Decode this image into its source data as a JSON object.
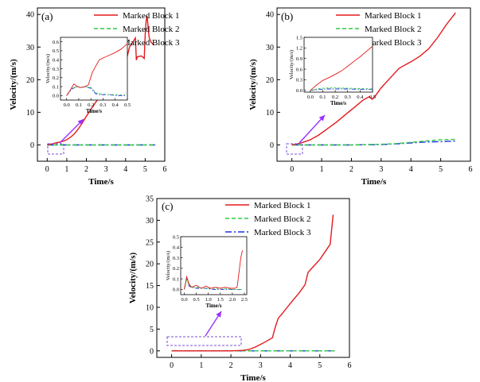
{
  "chart_data": [
    {
      "id": "a",
      "panel_label": "(a)",
      "type": "line",
      "xlabel": "Time/s",
      "ylabel": "Velocity/(m/s)",
      "xlim": [
        -0.5,
        6
      ],
      "ylim": [
        -5,
        42
      ],
      "xticks": [
        0,
        1,
        2,
        3,
        4,
        5,
        6
      ],
      "yticks": [
        0,
        10,
        20,
        30,
        40
      ],
      "legend": [
        "Marked Block 1",
        "Marked Block 2",
        "Marked Block 3"
      ],
      "series": [
        {
          "name": "Marked Block 1",
          "color": "#e41a1c",
          "dash": "solid",
          "x": [
            0,
            0.3,
            0.5,
            0.8,
            1.0,
            1.2,
            1.4,
            1.6,
            1.8,
            2.0,
            2.3,
            2.6,
            2.9,
            3.2,
            3.4,
            3.6,
            3.8,
            3.9,
            4.0,
            4.1,
            4.2,
            4.4,
            4.5,
            4.55,
            4.6,
            4.8,
            4.95,
            5.0,
            5.05,
            5.1,
            5.2,
            5.3,
            5.45
          ],
          "y": [
            0,
            0.4,
            0.7,
            1.1,
            1.6,
            2.4,
            3.5,
            5.0,
            6.8,
            8.8,
            11.5,
            14.2,
            16.8,
            19.5,
            18.6,
            21.2,
            23.5,
            23.8,
            25.0,
            27.5,
            30.0,
            31.8,
            32.8,
            26.0,
            27.0,
            27.3,
            26.5,
            33.8,
            38.0,
            39.5,
            33.0,
            31.5,
            30.6
          ]
        },
        {
          "name": "Marked Block 2",
          "color": "#2ecc40",
          "dash": "dash",
          "x": [
            0,
            1,
            2,
            3,
            4,
            5,
            5.5
          ],
          "y": [
            0,
            0,
            0,
            0,
            0,
            0,
            0
          ]
        },
        {
          "name": "Marked Block 3",
          "color": "#1f2fe8",
          "dash": "dashdot",
          "x": [
            0,
            1,
            2,
            3,
            4,
            5,
            5.5
          ],
          "y": [
            0,
            0,
            0,
            0,
            0,
            0,
            0
          ]
        }
      ],
      "inset": {
        "xlabel": "Time/s",
        "ylabel": "Velocity/(m/s)",
        "xlim": [
          -0.05,
          0.5
        ],
        "ylim": [
          -0.05,
          0.65
        ],
        "xticks": [
          0.0,
          0.1,
          0.2,
          0.3,
          0.4,
          0.5
        ],
        "xtick_labels": [
          "0.0",
          "0.1",
          "0.2",
          "0.3",
          "0.4",
          "0.5"
        ],
        "yticks": [
          0.0,
          0.1,
          0.2,
          0.3,
          0.4,
          0.5,
          0.6
        ],
        "ytick_labels": [
          "0.0",
          "0.1",
          "0.2",
          "0.3",
          "0.4",
          "0.5",
          "0.6"
        ],
        "series": [
          {
            "color": "#e41a1c",
            "dash": "solid",
            "x": [
              0,
              0.03,
              0.06,
              0.09,
              0.12,
              0.15,
              0.18,
              0.21,
              0.24,
              0.27,
              0.3,
              0.35,
              0.4,
              0.45,
              0.5
            ],
            "y": [
              0,
              0.06,
              0.13,
              0.1,
              0.09,
              0.1,
              0.12,
              0.25,
              0.33,
              0.4,
              0.42,
              0.45,
              0.48,
              0.52,
              0.58
            ]
          },
          {
            "color": "#2ecc40",
            "dash": "dash",
            "x": [
              0,
              0.04,
              0.08,
              0.12,
              0.16,
              0.2,
              0.24,
              0.28,
              0.35,
              0.42,
              0.48
            ],
            "y": [
              0,
              0.08,
              0.1,
              0.09,
              0.1,
              0.09,
              0.03,
              0.02,
              0.01,
              0.01,
              0.01
            ]
          },
          {
            "color": "#1f2fe8",
            "dash": "dashdot",
            "x": [
              0,
              0.04,
              0.08,
              0.12,
              0.16,
              0.2,
              0.24,
              0.28,
              0.35,
              0.42,
              0.48
            ],
            "y": [
              0,
              0.07,
              0.1,
              0.09,
              0.1,
              0.08,
              0.02,
              0.01,
              0.01,
              0.0,
              0.0
            ]
          }
        ]
      }
    },
    {
      "id": "b",
      "panel_label": "(b)",
      "type": "line",
      "xlabel": "Time/s",
      "ylabel": "Velocity/(m/s)",
      "xlim": [
        -0.5,
        6
      ],
      "ylim": [
        -5,
        42
      ],
      "xticks": [
        0,
        1,
        2,
        3,
        4,
        5,
        6
      ],
      "yticks": [
        0,
        10,
        20,
        30,
        40
      ],
      "legend": [
        "Marked Block 1",
        "Marked Block 2",
        "Marked Block 3"
      ],
      "series": [
        {
          "name": "Marked Block 1",
          "color": "#e41a1c",
          "dash": "solid",
          "x": [
            0,
            0.3,
            0.6,
            0.9,
            1.2,
            1.5,
            1.8,
            2.1,
            2.4,
            2.6,
            2.7,
            2.8,
            3.0,
            3.3,
            3.6,
            4.0,
            4.3,
            4.6,
            4.9,
            5.2,
            5.5
          ],
          "y": [
            0,
            0.6,
            1.5,
            3.0,
            5.0,
            7.0,
            9.3,
            11.5,
            13.8,
            14.8,
            14.0,
            15.0,
            17.5,
            20.5,
            23.5,
            25.5,
            27.2,
            29.5,
            33.0,
            37.0,
            40.5
          ]
        },
        {
          "name": "Marked Block 2",
          "color": "#2ecc40",
          "dash": "dash",
          "x": [
            0,
            1,
            2,
            3,
            3.5,
            4,
            4.5,
            5,
            5.5
          ],
          "y": [
            0,
            0,
            0,
            0.2,
            0.4,
            0.8,
            1.2,
            1.6,
            1.7
          ]
        },
        {
          "name": "Marked Block 3",
          "color": "#1f2fe8",
          "dash": "dashdot",
          "x": [
            0,
            1,
            2,
            3,
            3.5,
            4,
            4.5,
            5,
            5.5
          ],
          "y": [
            0,
            0,
            0,
            0.1,
            0.3,
            0.6,
            0.9,
            1.0,
            1.2
          ]
        }
      ],
      "inset": {
        "xlabel": "Time/s",
        "ylabel": "Velocity/(m/s)",
        "xlim": [
          -0.05,
          0.5
        ],
        "ylim": [
          -0.05,
          1.5
        ],
        "xticks": [
          0.0,
          0.1,
          0.2,
          0.3,
          0.4,
          0.5
        ],
        "xtick_labels": [
          "0.0",
          "0.1",
          "0.2",
          "0.3",
          "0.4",
          "0.5"
        ],
        "yticks": [
          0.0,
          0.3,
          0.6,
          0.9,
          1.2,
          1.5
        ],
        "ytick_labels": [
          "0.0",
          "0.3",
          "0.6",
          "0.9",
          "1.2",
          "1.5"
        ],
        "series": [
          {
            "color": "#e41a1c",
            "dash": "solid",
            "x": [
              0,
              0.05,
              0.1,
              0.15,
              0.2,
              0.25,
              0.3,
              0.35,
              0.4,
              0.45,
              0.5
            ],
            "y": [
              0,
              0.15,
              0.28,
              0.36,
              0.45,
              0.55,
              0.68,
              0.82,
              0.95,
              1.1,
              1.25
            ]
          },
          {
            "color": "#2ecc40",
            "dash": "dash",
            "x": [
              0,
              0.05,
              0.1,
              0.15,
              0.2,
              0.3,
              0.4,
              0.5
            ],
            "y": [
              0,
              0.04,
              0.06,
              0.07,
              0.07,
              0.06,
              0.05,
              0.04
            ]
          },
          {
            "color": "#1f2fe8",
            "dash": "dashdot",
            "x": [
              0,
              0.05,
              0.1,
              0.15,
              0.2,
              0.3,
              0.4,
              0.5
            ],
            "y": [
              0,
              0.02,
              0.03,
              0.04,
              0.04,
              0.04,
              0.03,
              0.03
            ]
          }
        ]
      }
    },
    {
      "id": "c",
      "panel_label": "(c)",
      "type": "line",
      "xlabel": "Time/s",
      "ylabel": "Velocity/(m/s)",
      "xlim": [
        -0.5,
        6
      ],
      "ylim": [
        -1.5,
        35
      ],
      "xticks": [
        0,
        1,
        2,
        3,
        4,
        5,
        6
      ],
      "yticks": [
        0,
        5,
        10,
        15,
        20,
        25,
        30,
        35
      ],
      "legend": [
        "Marked Block 1",
        "Marked Block 2",
        "Marked Block 3"
      ],
      "series": [
        {
          "name": "Marked Block 1",
          "color": "#e41a1c",
          "dash": "solid",
          "x": [
            0,
            0.5,
            1.0,
            1.5,
            2.0,
            2.4,
            2.6,
            2.8,
            3.0,
            3.2,
            3.4,
            3.5,
            3.6,
            3.7,
            3.9,
            4.1,
            4.3,
            4.5,
            4.6,
            4.8,
            5.0,
            5.2,
            5.35,
            5.45
          ],
          "y": [
            0,
            0,
            0,
            0,
            0,
            0.1,
            0.3,
            0.8,
            1.5,
            2.2,
            3.0,
            5.5,
            7.5,
            8.3,
            10.0,
            11.7,
            13.3,
            15.2,
            18.0,
            19.5,
            21.0,
            23.0,
            24.5,
            31.3
          ]
        },
        {
          "name": "Marked Block 2",
          "color": "#2ecc40",
          "dash": "dash",
          "x": [
            0,
            1,
            2,
            3,
            4,
            5,
            5.5
          ],
          "y": [
            0,
            0,
            0,
            0,
            0,
            0,
            0
          ]
        },
        {
          "name": "Marked Block 3",
          "color": "#1f2fe8",
          "dash": "dashdot",
          "x": [
            0,
            1,
            2,
            3,
            4,
            5,
            5.5
          ],
          "y": [
            0,
            0,
            0,
            0,
            0,
            0,
            0
          ]
        }
      ],
      "inset": {
        "xlabel": "Time/s",
        "ylabel": "Velocity/(m/s)",
        "xlim": [
          -0.15,
          2.6
        ],
        "ylim": [
          -0.05,
          0.5
        ],
        "xticks": [
          0.0,
          0.5,
          1.0,
          1.5,
          2.0,
          2.5
        ],
        "xtick_labels": [
          "0.0",
          "0.5",
          "1.0",
          "1.5",
          "2.0",
          "2.5"
        ],
        "yticks": [
          0.0,
          0.1,
          0.2,
          0.3,
          0.4,
          0.5
        ],
        "ytick_labels": [
          "0.0",
          "0.1",
          "0.2",
          "0.3",
          "0.4",
          "0.5"
        ],
        "series": [
          {
            "color": "#e41a1c",
            "dash": "solid",
            "x": [
              0,
              0.1,
              0.2,
              0.3,
              0.5,
              0.7,
              0.9,
              1.1,
              1.3,
              1.5,
              1.7,
              1.9,
              2.1,
              2.2,
              2.3,
              2.35,
              2.42
            ],
            "y": [
              0,
              0.12,
              0.05,
              0.02,
              0.04,
              0.01,
              0.03,
              0.01,
              0.02,
              0.01,
              0.02,
              0.01,
              0.01,
              0.02,
              0.2,
              0.3,
              0.37
            ]
          },
          {
            "color": "#2ecc40",
            "dash": "dash",
            "x": [
              0,
              0.1,
              0.2,
              0.3,
              0.5,
              0.8,
              1.2,
              1.6,
              2.0,
              2.4
            ],
            "y": [
              0,
              0.09,
              0.04,
              0.02,
              0.02,
              0.01,
              0.01,
              0.01,
              0.0,
              0.0
            ]
          },
          {
            "color": "#1f2fe8",
            "dash": "dashdot",
            "x": [
              0,
              0.1,
              0.2,
              0.3,
              0.5,
              0.8,
              1.2,
              1.6,
              2.0,
              2.4
            ],
            "y": [
              0,
              0.1,
              0.03,
              0.02,
              0.01,
              0.01,
              0.0,
              0.0,
              0.0,
              0.0
            ]
          }
        ]
      }
    }
  ],
  "colors": {
    "arrow": "#9b30ff",
    "zoom_box": "#7b4fd6",
    "axis": "#000000"
  }
}
